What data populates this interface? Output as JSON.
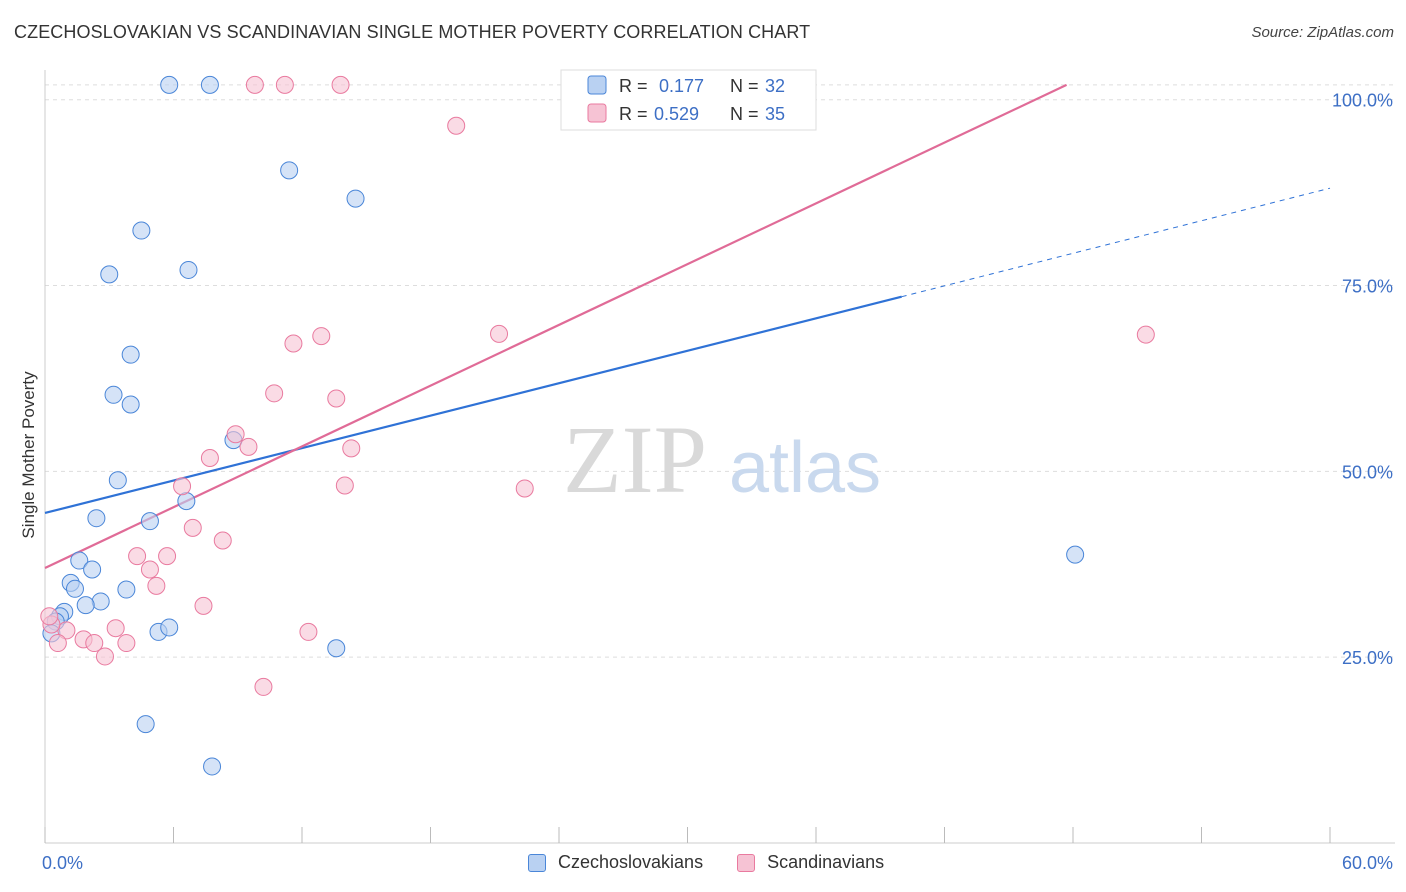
{
  "title": "CZECHOSLOVAKIAN VS SCANDINAVIAN SINGLE MOTHER POVERTY CORRELATION CHART",
  "source": "Source: ZipAtlas.com",
  "watermark": {
    "zip": "ZIP",
    "atlas": "atlas"
  },
  "colors": {
    "blue": "#4a86d8",
    "blue_fill": "#b9d1f2",
    "blue_line": "#2f72d6",
    "pink": "#e97a9f",
    "pink_fill": "#f6c3d4",
    "pink_line": "#e06b97",
    "axis_label": "#3d6fc5",
    "grid": "#dddddd"
  },
  "legend_top": {
    "rows": [
      {
        "r_label": "R =",
        "r_value": "0.177",
        "n_label": "N =",
        "n_value": "32",
        "series": "blue"
      },
      {
        "r_label": "R =",
        "r_value": "0.529",
        "n_label": "N =",
        "n_value": "35",
        "series": "pink"
      }
    ]
  },
  "legend_bottom": [
    "Czechoslovakians",
    "Scandinavians"
  ],
  "chart_data": {
    "type": "scatter",
    "title": "CZECHOSLOVAKIAN VS SCANDINAVIAN SINGLE MOTHER POVERTY CORRELATION CHART",
    "xlabel": "",
    "ylabel": "Single Mother Poverty",
    "xlim": [
      0,
      60
    ],
    "ylim": [
      0,
      104
    ],
    "x_tick_labels": [
      {
        "value": 0,
        "label": "0.0%"
      },
      {
        "value": 60,
        "label": "60.0%"
      }
    ],
    "y_tick_labels": [
      {
        "value": 25,
        "label": "25.0%"
      },
      {
        "value": 50,
        "label": "50.0%"
      },
      {
        "value": 75,
        "label": "75.0%"
      },
      {
        "value": 100,
        "label": "100.0%"
      }
    ],
    "series": [
      {
        "name": "Czechoslovakians",
        "color": "blue",
        "points": [
          [
            5.8,
            102
          ],
          [
            7.7,
            102
          ],
          [
            11.4,
            90.5
          ],
          [
            14.5,
            86.7
          ],
          [
            4.5,
            82.4
          ],
          [
            6.7,
            77.1
          ],
          [
            3.0,
            76.5
          ],
          [
            4.0,
            65.7
          ],
          [
            3.2,
            60.3
          ],
          [
            4.0,
            59.0
          ],
          [
            8.8,
            54.2
          ],
          [
            3.4,
            48.8
          ],
          [
            2.4,
            43.7
          ],
          [
            6.6,
            46.0
          ],
          [
            4.9,
            43.3
          ],
          [
            1.6,
            38.0
          ],
          [
            2.2,
            36.8
          ],
          [
            1.2,
            35.0
          ],
          [
            1.4,
            34.2
          ],
          [
            3.8,
            34.1
          ],
          [
            2.6,
            32.5
          ],
          [
            1.9,
            32.0
          ],
          [
            0.9,
            31.1
          ],
          [
            0.7,
            30.5
          ],
          [
            0.5,
            29.8
          ],
          [
            0.3,
            28.2
          ],
          [
            5.3,
            28.4
          ],
          [
            5.8,
            29.0
          ],
          [
            13.6,
            26.2
          ],
          [
            48.1,
            38.8
          ],
          [
            4.7,
            16.0
          ],
          [
            7.8,
            10.3
          ]
        ],
        "trend": {
          "x0": 0,
          "y0": 44.4,
          "x1": 40.0,
          "y1": 73.5,
          "dashed_to": {
            "x": 60,
            "y": 88.1
          }
        }
      },
      {
        "name": "Scandinavians",
        "color": "pink",
        "points": [
          [
            9.8,
            102
          ],
          [
            11.2,
            102
          ],
          [
            13.8,
            102
          ],
          [
            19.2,
            96.5
          ],
          [
            21.2,
            68.5
          ],
          [
            51.4,
            68.4
          ],
          [
            12.9,
            68.2
          ],
          [
            11.6,
            67.2
          ],
          [
            10.7,
            60.5
          ],
          [
            13.6,
            59.8
          ],
          [
            8.9,
            55.0
          ],
          [
            9.5,
            53.3
          ],
          [
            14.3,
            53.1
          ],
          [
            7.7,
            51.8
          ],
          [
            14.0,
            48.1
          ],
          [
            6.4,
            48.0
          ],
          [
            22.4,
            47.7
          ],
          [
            6.9,
            42.4
          ],
          [
            8.3,
            40.7
          ],
          [
            5.7,
            38.6
          ],
          [
            4.3,
            38.6
          ],
          [
            4.9,
            36.8
          ],
          [
            5.2,
            34.6
          ],
          [
            7.4,
            31.9
          ],
          [
            3.3,
            28.9
          ],
          [
            12.3,
            28.4
          ],
          [
            1.0,
            28.6
          ],
          [
            1.8,
            27.4
          ],
          [
            0.3,
            29.4
          ],
          [
            0.6,
            26.9
          ],
          [
            3.8,
            26.9
          ],
          [
            2.3,
            26.9
          ],
          [
            2.8,
            25.1
          ],
          [
            10.2,
            21.0
          ],
          [
            0.2,
            30.5
          ]
        ],
        "trend": {
          "x0": 0,
          "y0": 37.0,
          "x1": 47.7,
          "y1": 102.0
        }
      }
    ]
  }
}
